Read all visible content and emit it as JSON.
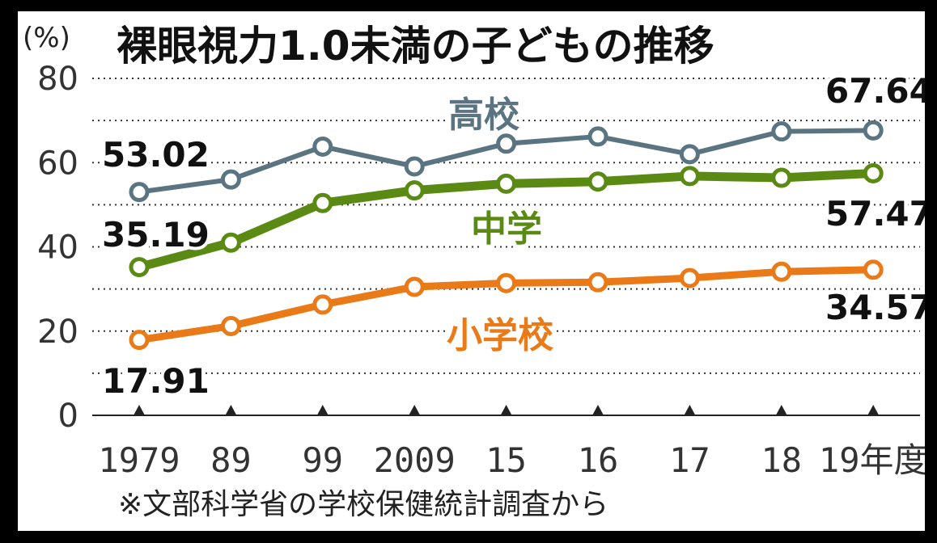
{
  "chart_data": {
    "type": "line",
    "title": "裸眼視力1.0未満の子どもの推移",
    "unit_label": "(%)",
    "x_categories": [
      "1979",
      "89",
      "99",
      "2009",
      "15",
      "16",
      "17",
      "18",
      "19年度"
    ],
    "ylim": [
      0,
      80
    ],
    "yticks": [
      "0",
      "20",
      "40",
      "60",
      "80"
    ],
    "grid": true,
    "series": [
      {
        "name": "高校",
        "color": "#5a7481",
        "values": [
          53.02,
          56.0,
          63.8,
          59.1,
          64.5,
          66.2,
          62.0,
          67.4,
          67.64
        ]
      },
      {
        "name": "中学",
        "color": "#5a8a14",
        "values": [
          35.19,
          41.0,
          50.4,
          53.4,
          55.0,
          55.5,
          56.8,
          56.4,
          57.47
        ]
      },
      {
        "name": "小学校",
        "color": "#ea7a17",
        "values": [
          17.91,
          21.2,
          26.3,
          30.5,
          31.4,
          31.6,
          32.6,
          34.1,
          34.57
        ]
      }
    ],
    "annotations": {
      "high_start": "53.02",
      "high_end": "67.64",
      "middle_start": "35.19",
      "middle_end": "57.47",
      "elem_start": "17.91",
      "elem_end": "34.57"
    },
    "source": "※文部科学省の学校保健統計調査から"
  }
}
